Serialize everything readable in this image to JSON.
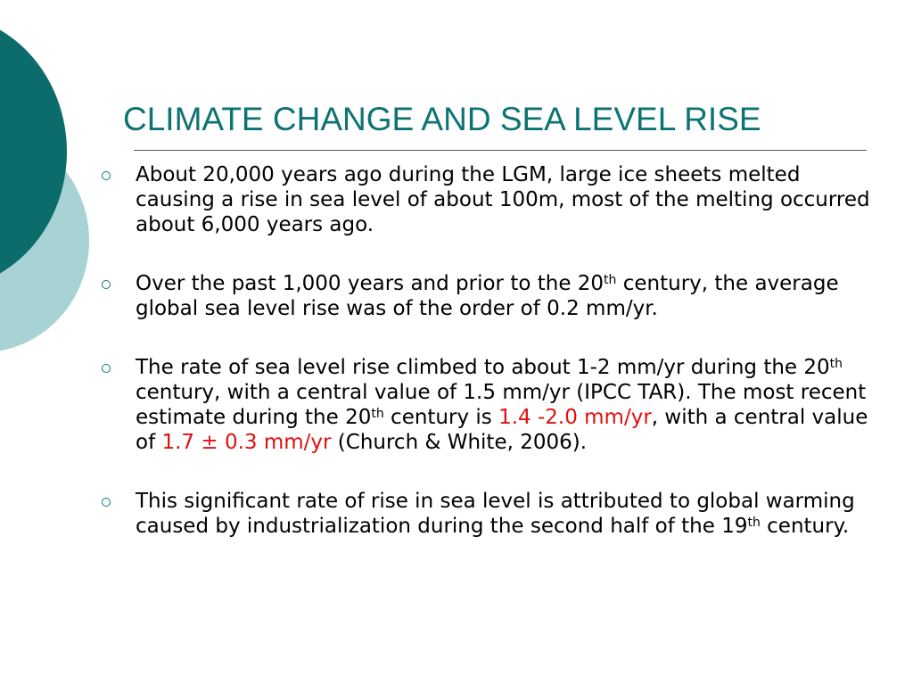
{
  "slide": {
    "title": "CLIMATE CHANGE AND SEA LEVEL RISE",
    "bullets": [
      {
        "text": "About 20,000 years ago during the LGM, large ice sheets melted causing a rise in sea level of about 100m, most of the melting occurred about 6,000 years ago."
      },
      {
        "part1": "Over the past 1,000 years and prior to the 20",
        "sup1": "th",
        "part2": " century, the average global sea level rise was of the order of 0.2 mm/yr."
      },
      {
        "part1": "The rate of sea level rise climbed to about 1-2 mm/yr during the 20",
        "sup1": "th",
        "part2": " century, with a central value of 1.5 mm/yr (IPCC TAR). The most recent estimate during the 20",
        "sup2": "th",
        "part3": " century is ",
        "highlight1": "1.4 -2.0 mm/yr",
        "part4": ", with a central value of ",
        "highlight2": "1.7 ± 0.3 mm/yr",
        "part5": " (Church & White, 2006)."
      },
      {
        "part1": "This significant rate of rise in sea level is attributed to global warming caused by industrialization during the second half of the 19",
        "sup1": "th",
        "part2": " century."
      }
    ]
  },
  "colors": {
    "title": "#0d7373",
    "decoration_dark": "#0c6b6b",
    "decoration_light": "#a7d3d4",
    "highlight": "#e01010"
  }
}
